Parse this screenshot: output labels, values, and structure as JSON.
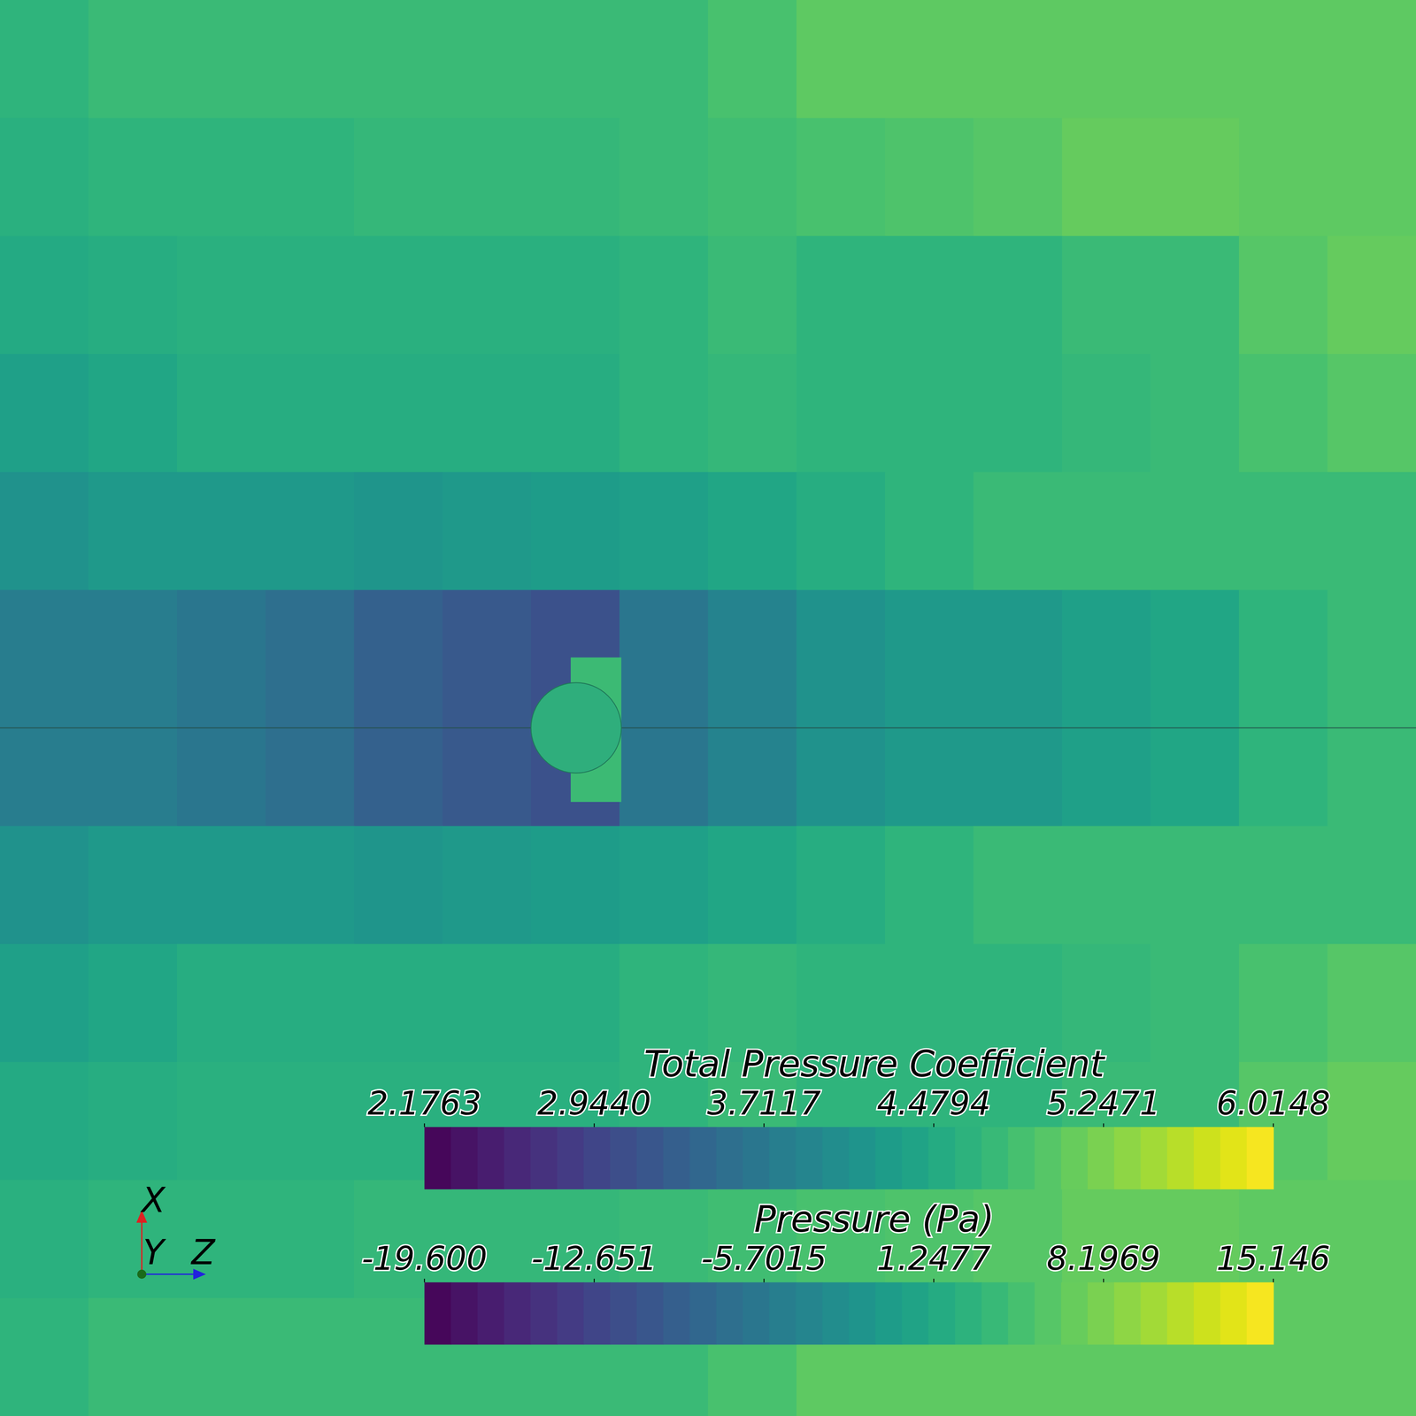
{
  "chart_data": {
    "type": "heatmap",
    "tick_labels": false,
    "triad_labels": [
      "X",
      "Y",
      "Z"
    ],
    "colorbars": [
      {
        "title": "Total Pressure Coefficient",
        "range": [
          2.1763,
          6.0148
        ],
        "ticks": [
          2.1763,
          {
            "value": 2.944,
            "label": "2.9440"
          },
          3.7117,
          4.4794,
          5.2471,
          6.0148
        ]
      },
      {
        "title": "Pressure (Pa)",
        "range": [
          -19.6,
          15.146
        ],
        "ticks": [
          {
            "value": -19.6,
            "label": "-19.600"
          },
          -12.651,
          -5.7015,
          1.2477,
          8.1969,
          15.146
        ]
      }
    ],
    "cells": [
      [
        3,
        4,
        4,
        4,
        4,
        4,
        4,
        4,
        5,
        6.5,
        6.5,
        6.5,
        6.5,
        6.5,
        6.5,
        6.5
      ],
      [
        2.5,
        3,
        3,
        3,
        3.5,
        3.5,
        3.5,
        4,
        4.5,
        5,
        5.5,
        6,
        7,
        7,
        6.5,
        6.5
      ],
      [
        1.5,
        2,
        2.5,
        2.5,
        2.5,
        2.5,
        2.5,
        3,
        4,
        3,
        3,
        3,
        4,
        4,
        6,
        7
      ],
      [
        0,
        1,
        2,
        2,
        2,
        2,
        2,
        3,
        3.5,
        3,
        3,
        3,
        3.5,
        4,
        5,
        6
      ],
      [
        -2,
        -1,
        -1,
        -1,
        -1.5,
        -1,
        -0.5,
        0,
        1,
        2,
        3,
        4,
        4,
        4,
        4,
        4
      ],
      [
        -5,
        -5,
        -6,
        -7,
        -9,
        -10,
        -11,
        -6,
        -4,
        -2,
        -1,
        -1,
        0,
        1,
        3,
        4
      ],
      [
        -5,
        -5,
        -6,
        -7,
        -9,
        -10,
        -11,
        -6,
        -4,
        -2,
        -1,
        -1,
        0,
        1,
        3,
        4
      ],
      [
        -2,
        -1,
        -1,
        -1,
        -1.5,
        -1,
        -0.5,
        0,
        1,
        2,
        3,
        4,
        4,
        4,
        4,
        4
      ],
      [
        0,
        1,
        2,
        2,
        2,
        2,
        2,
        3,
        3.5,
        3,
        3,
        3,
        3.5,
        4,
        5,
        6
      ],
      [
        1.5,
        2,
        2.5,
        2.5,
        2.5,
        2.5,
        2.5,
        3,
        4,
        3,
        3,
        3,
        4,
        4,
        6,
        7
      ],
      [
        2.5,
        3,
        3,
        3,
        3.5,
        3.5,
        3.5,
        4,
        4.5,
        5,
        5.5,
        6,
        7,
        7,
        6.5,
        6.5
      ],
      [
        3,
        4,
        4,
        4,
        4,
        4,
        4,
        4,
        5,
        6.5,
        6.5,
        6.5,
        6.5,
        6.5,
        6.5,
        6.5
      ]
    ]
  }
}
